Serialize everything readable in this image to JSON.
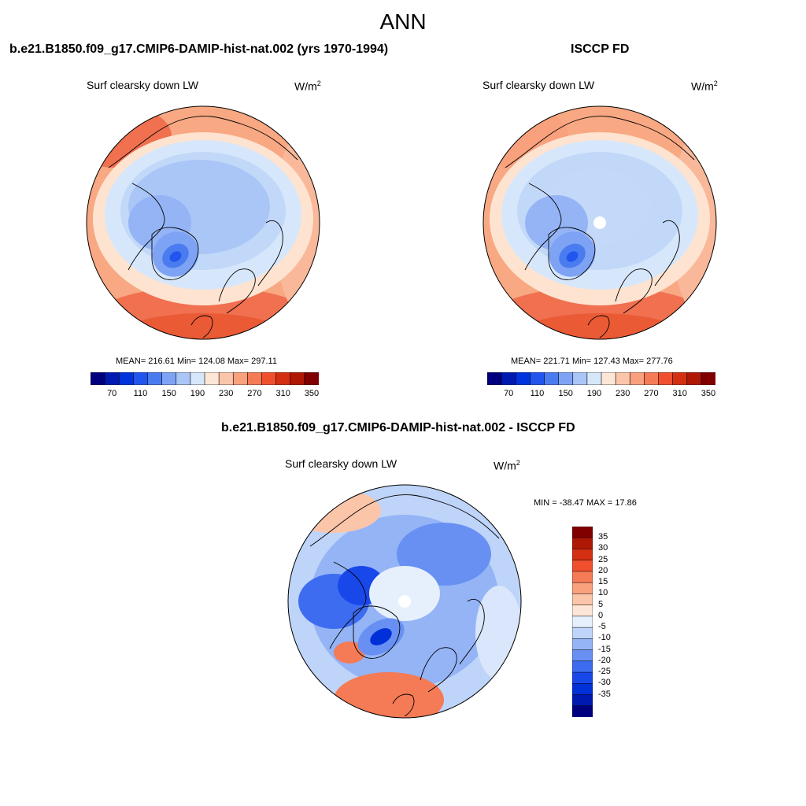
{
  "header": {
    "title": "ANN"
  },
  "panels": [
    {
      "case_title": "b.e21.B1850.f09_g17.CMIP6-DAMIP-hist-nat.002 (yrs 1970-1994)",
      "variable": "Surf clearsky down LW",
      "units_base": "W/m",
      "units_exp": "2",
      "stats": "MEAN= 216.61  Min= 124.08  Max= 297.11",
      "mean": 216.61,
      "min": 124.08,
      "max": 297.11
    },
    {
      "case_title": "ISCCP FD",
      "variable": "Surf clearsky down LW",
      "units_base": "W/m",
      "units_exp": "2",
      "stats": "MEAN= 221.71  Min= 127.43  Max= 277.76",
      "mean": 221.71,
      "min": 127.43,
      "max": 277.76
    },
    {
      "case_title": "b.e21.B1850.f09_g17.CMIP6-DAMIP-hist-nat.002 - ISCCP FD",
      "variable": "Surf clearsky down LW",
      "units_base": "W/m",
      "units_exp": "2",
      "stats": "MIN = -38.47 MAX =  17.86",
      "min": -38.47,
      "max": 17.86
    }
  ],
  "abs_colorbar": {
    "colors": [
      "#00007f",
      "#0019b0",
      "#0033dd",
      "#2255ee",
      "#4a7cf0",
      "#7ea3f4",
      "#aac6f7",
      "#d7e7fb",
      "#fde6d6",
      "#fbc5aa",
      "#f9a07d",
      "#f57a56",
      "#f0502e",
      "#d52f12",
      "#b01806",
      "#800000"
    ],
    "tick_labels": [
      "70",
      "110",
      "150",
      "190",
      "230",
      "270",
      "310",
      "350"
    ]
  },
  "diff_colorbar": {
    "colors": [
      "#00007f",
      "#0019b0",
      "#0030d8",
      "#1848ea",
      "#3d6cf0",
      "#6890f3",
      "#94b4f6",
      "#bfd4f9",
      "#e6f0fd",
      "#fde6d6",
      "#fbc5aa",
      "#f9a07d",
      "#f57a56",
      "#f0502e",
      "#d52f12",
      "#b01806",
      "#800000"
    ],
    "tick_labels": [
      "35",
      "30",
      "25",
      "20",
      "15",
      "10",
      "5",
      "0",
      "-5",
      "-10",
      "-15",
      "-20",
      "-25",
      "-30",
      "-35"
    ]
  }
}
